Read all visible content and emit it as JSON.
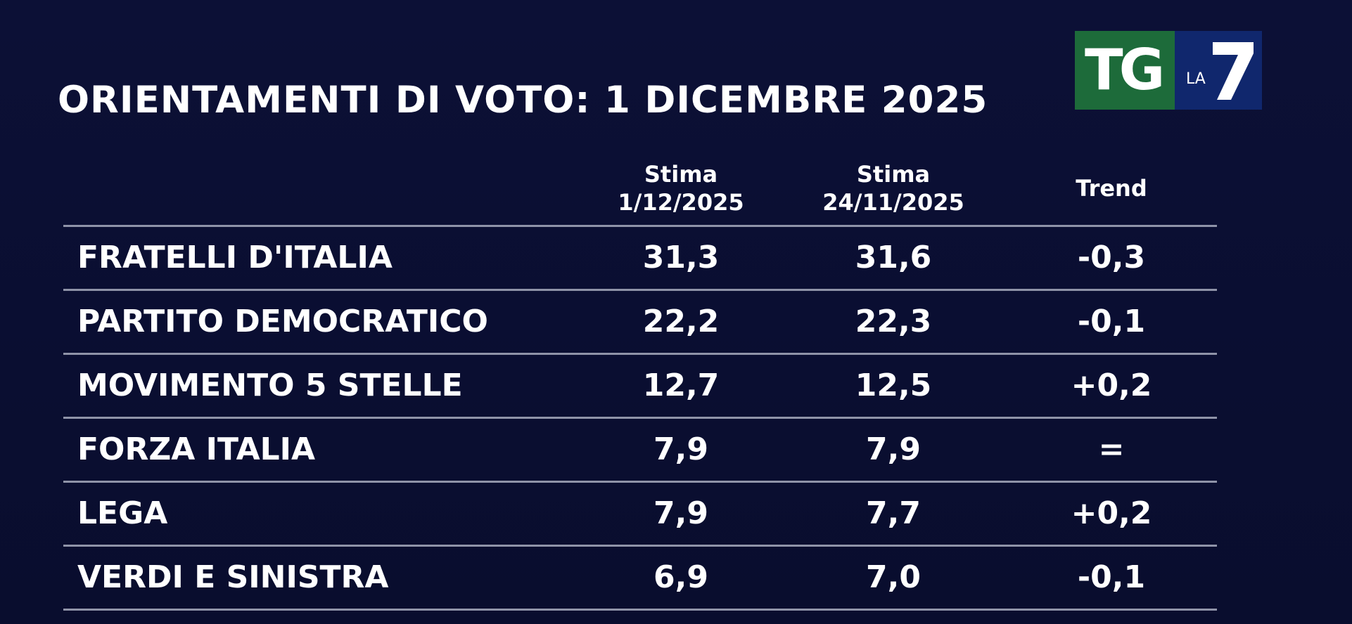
{
  "title": "ORIENTAMENTI DI VOTO: 1 DICEMBRE 2025",
  "logo": {
    "brand_tg": "TG",
    "brand_la": "LA",
    "tg_color": "#1d6b3a",
    "la7_color": "#10276d",
    "icon": "la7-seven-logo"
  },
  "chart_data": {
    "type": "table",
    "title": "ORIENTAMENTI DI VOTO: 1 DICEMBRE 2025",
    "columns": [
      {
        "line1": "",
        "line2": ""
      },
      {
        "line1": "Stima",
        "line2": "1/12/2025"
      },
      {
        "line1": "Stima",
        "line2": "24/11/2025"
      },
      {
        "line1": "Trend",
        "line2": ""
      }
    ],
    "rows": [
      {
        "party": "FRATELLI D'ITALIA",
        "v1": "31,3",
        "v2": "31,6",
        "trend": "-0,3"
      },
      {
        "party": "PARTITO DEMOCRATICO",
        "v1": "22,2",
        "v2": "22,3",
        "trend": "-0,1"
      },
      {
        "party": "MOVIMENTO 5 STELLE",
        "v1": "12,7",
        "v2": "12,5",
        "trend": "+0,2"
      },
      {
        "party": "FORZA ITALIA",
        "v1": "7,9",
        "v2": "7,9",
        "trend": "="
      },
      {
        "party": "LEGA",
        "v1": "7,9",
        "v2": "7,7",
        "trend": "+0,2"
      },
      {
        "party": "VERDI E SINISTRA",
        "v1": "6,9",
        "v2": "7,0",
        "trend": "-0,1"
      }
    ]
  }
}
